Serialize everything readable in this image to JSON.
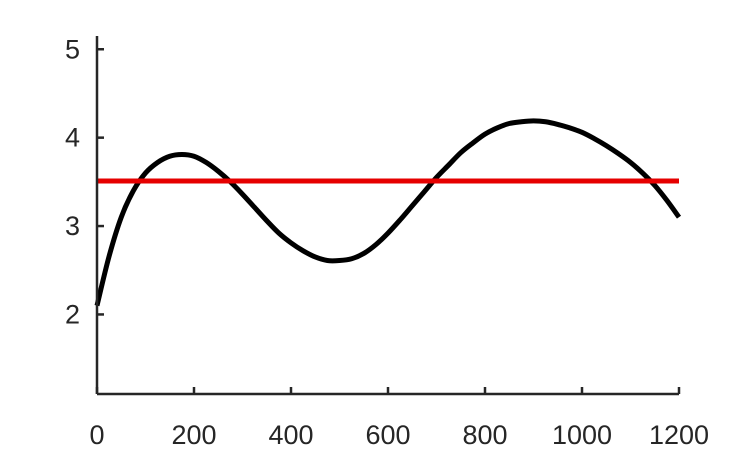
{
  "chart_data": {
    "type": "line",
    "title": "",
    "xlabel": "",
    "ylabel": "",
    "xlim": [
      0,
      1200
    ],
    "ylim": [
      1.1,
      5.15
    ],
    "xticks": [
      0,
      200,
      400,
      600,
      800,
      1000,
      1200
    ],
    "yticks": [
      2,
      3,
      4,
      5
    ],
    "grid": false,
    "legend": "none",
    "series": [
      {
        "color": "#000000",
        "x": [
          0,
          25,
          50,
          75,
          100,
          125,
          150,
          175,
          200,
          225,
          250,
          275,
          300,
          325,
          350,
          375,
          400,
          425,
          450,
          475,
          500,
          525,
          550,
          575,
          600,
          625,
          650,
          675,
          700,
          725,
          750,
          775,
          800,
          825,
          850,
          875,
          900,
          925,
          950,
          975,
          1000,
          1025,
          1050,
          1075,
          1100,
          1125,
          1150,
          1175,
          1200
        ],
        "y": [
          2.1,
          2.66,
          3.1,
          3.4,
          3.6,
          3.72,
          3.79,
          3.81,
          3.79,
          3.72,
          3.62,
          3.5,
          3.36,
          3.21,
          3.06,
          2.92,
          2.81,
          2.72,
          2.65,
          2.61,
          2.61,
          2.63,
          2.69,
          2.79,
          2.92,
          3.07,
          3.23,
          3.39,
          3.55,
          3.69,
          3.83,
          3.94,
          4.04,
          4.11,
          4.16,
          4.18,
          4.19,
          4.18,
          4.15,
          4.11,
          4.06,
          3.99,
          3.91,
          3.82,
          3.72,
          3.6,
          3.46,
          3.29,
          3.1
        ]
      },
      {
        "color": "#e60000",
        "x": [
          0,
          1200
        ],
        "y": [
          3.51,
          3.51
        ]
      }
    ]
  }
}
